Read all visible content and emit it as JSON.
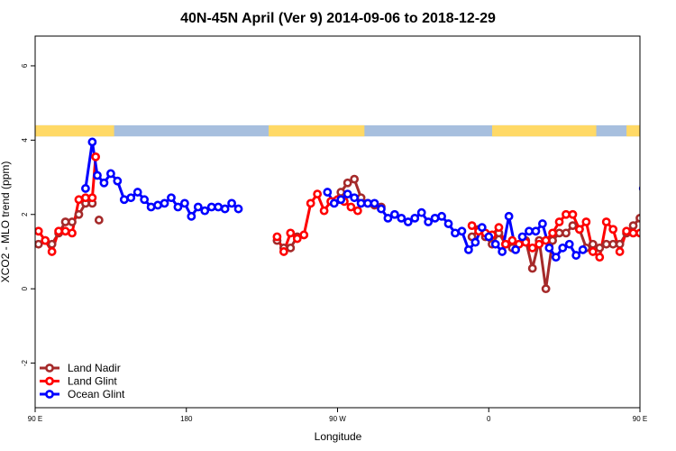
{
  "chart_data": {
    "type": "line",
    "title": "40N-45N April (Ver 9)   2014-09-06 to 2018-12-29",
    "xlabel": "Longitude",
    "ylabel": "XCO2 - MLO trend (ppm)",
    "xlim": [
      90,
      450
    ],
    "ylim": [
      -3.2,
      6.8
    ],
    "x_ticks": [
      {
        "value": 90,
        "label": "90 E"
      },
      {
        "value": 180,
        "label": "180"
      },
      {
        "value": 270,
        "label": "90 W"
      },
      {
        "value": 360,
        "label": "0"
      },
      {
        "value": 450,
        "label": "90 E"
      },
      {
        "value": 540,
        "label": "180"
      }
    ],
    "y_ticks": [
      -2,
      0,
      2,
      4,
      6
    ],
    "land_sea_strip": {
      "y_range": [
        4.1,
        4.4
      ],
      "land_color": "#ffd966",
      "ocean_color": "#a7bfde",
      "land_segments": [
        [
          90,
          137
        ],
        [
          229,
          286
        ],
        [
          362,
          424
        ],
        [
          442,
          460
        ],
        [
          470,
          471
        ]
      ]
    },
    "legend_position": "bottom-left",
    "series": [
      {
        "name": "Land Nadir",
        "color": "#a52a2a",
        "segments": [
          [
            [
              92,
              1.2
            ],
            [
              96,
              1.3
            ],
            [
              100,
              1.2
            ],
            [
              104,
              1.5
            ],
            [
              108,
              1.8
            ],
            [
              112,
              1.8
            ],
            [
              116,
              2.0
            ],
            [
              120,
              2.3
            ],
            [
              124,
              2.3
            ]
          ],
          [
            [
              128,
              1.85
            ]
          ],
          [
            [
              234,
              1.3
            ],
            [
              238,
              1.1
            ],
            [
              242,
              1.1
            ],
            [
              246,
              1.4
            ]
          ],
          [
            [
              268,
              2.35
            ],
            [
              272,
              2.6
            ],
            [
              276,
              2.85
            ],
            [
              280,
              2.95
            ],
            [
              284,
              2.45
            ],
            [
              288,
              2.3
            ],
            [
              292,
              2.25
            ],
            [
              296,
              2.2
            ]
          ],
          [
            [
              350,
              1.4
            ],
            [
              354,
              1.6
            ],
            [
              358,
              1.4
            ],
            [
              362,
              1.2
            ],
            [
              366,
              1.5
            ],
            [
              370,
              1.2
            ],
            [
              374,
              1.1
            ],
            [
              378,
              1.2
            ],
            [
              382,
              1.3
            ],
            [
              386,
              0.55
            ],
            [
              390,
              1.3
            ],
            [
              394,
              0.0
            ],
            [
              398,
              1.3
            ],
            [
              402,
              1.5
            ],
            [
              406,
              1.5
            ],
            [
              410,
              1.7
            ],
            [
              414,
              1.6
            ],
            [
              418,
              1.1
            ],
            [
              422,
              1.2
            ],
            [
              426,
              1.1
            ],
            [
              430,
              1.2
            ],
            [
              434,
              1.2
            ],
            [
              438,
              1.2
            ],
            [
              442,
              1.5
            ],
            [
              446,
              1.7
            ],
            [
              450,
              1.9
            ],
            [
              454,
              2.0
            ],
            [
              458,
              2.3
            ],
            [
              462,
              2.25
            ]
          ],
          [
            [
              466,
              1.85
            ]
          ]
        ]
      },
      {
        "name": "Land Glint",
        "color": "#ff0000",
        "segments": [
          [
            [
              92,
              1.55
            ],
            [
              96,
              1.3
            ],
            [
              100,
              1.0
            ],
            [
              104,
              1.55
            ],
            [
              108,
              1.55
            ],
            [
              112,
              1.5
            ],
            [
              116,
              2.4
            ],
            [
              120,
              2.45
            ],
            [
              124,
              2.45
            ],
            [
              126,
              3.55
            ]
          ],
          [
            [
              234,
              1.4
            ],
            [
              238,
              1.0
            ],
            [
              242,
              1.5
            ],
            [
              246,
              1.35
            ],
            [
              250,
              1.45
            ],
            [
              254,
              2.3
            ],
            [
              258,
              2.55
            ],
            [
              262,
              2.1
            ],
            [
              266,
              2.35
            ],
            [
              270,
              2.4
            ],
            [
              274,
              2.35
            ],
            [
              278,
              2.2
            ],
            [
              282,
              2.1
            ]
          ],
          [
            [
              350,
              1.7
            ],
            [
              354,
              1.55
            ],
            [
              358,
              1.5
            ],
            [
              362,
              1.45
            ],
            [
              366,
              1.65
            ],
            [
              370,
              1.2
            ],
            [
              374,
              1.3
            ],
            [
              378,
              1.2
            ],
            [
              382,
              1.25
            ],
            [
              386,
              1.1
            ],
            [
              390,
              1.2
            ],
            [
              394,
              1.3
            ],
            [
              398,
              1.5
            ],
            [
              402,
              1.8
            ],
            [
              406,
              2.0
            ],
            [
              410,
              2.0
            ],
            [
              414,
              1.6
            ],
            [
              418,
              1.8
            ],
            [
              422,
              1.0
            ],
            [
              426,
              0.85
            ],
            [
              430,
              1.8
            ],
            [
              434,
              1.6
            ],
            [
              438,
              1.0
            ],
            [
              442,
              1.55
            ],
            [
              446,
              1.5
            ],
            [
              450,
              1.5
            ],
            [
              454,
              2.4
            ],
            [
              458,
              2.45
            ],
            [
              462,
              2.45
            ],
            [
              464,
              3.55
            ]
          ]
        ]
      },
      {
        "name": "Ocean Glint",
        "color": "#0000ff",
        "segments": [
          [
            [
              120,
              2.7
            ],
            [
              124,
              3.95
            ],
            [
              127,
              3.05
            ],
            [
              131,
              2.85
            ],
            [
              135,
              3.1
            ],
            [
              139,
              2.9
            ],
            [
              143,
              2.4
            ],
            [
              147,
              2.45
            ],
            [
              151,
              2.6
            ],
            [
              155,
              2.4
            ],
            [
              159,
              2.2
            ],
            [
              163,
              2.25
            ],
            [
              167,
              2.3
            ],
            [
              171,
              2.45
            ],
            [
              175,
              2.2
            ],
            [
              179,
              2.3
            ],
            [
              183,
              1.95
            ],
            [
              187,
              2.2
            ],
            [
              191,
              2.1
            ],
            [
              195,
              2.2
            ],
            [
              199,
              2.2
            ],
            [
              203,
              2.15
            ],
            [
              207,
              2.3
            ],
            [
              211,
              2.15
            ]
          ],
          [
            [
              264,
              2.6
            ],
            [
              268,
              2.3
            ],
            [
              272,
              2.4
            ],
            [
              276,
              2.55
            ],
            [
              280,
              2.45
            ],
            [
              284,
              2.3
            ],
            [
              288,
              2.3
            ],
            [
              292,
              2.3
            ],
            [
              296,
              2.15
            ],
            [
              300,
              1.9
            ],
            [
              304,
              2.0
            ],
            [
              308,
              1.9
            ],
            [
              312,
              1.8
            ],
            [
              316,
              1.9
            ],
            [
              320,
              2.05
            ],
            [
              324,
              1.8
            ],
            [
              328,
              1.9
            ],
            [
              332,
              1.95
            ],
            [
              336,
              1.75
            ],
            [
              340,
              1.5
            ],
            [
              344,
              1.55
            ],
            [
              348,
              1.05
            ],
            [
              352,
              1.25
            ],
            [
              356,
              1.65
            ],
            [
              360,
              1.4
            ],
            [
              364,
              1.2
            ],
            [
              368,
              1.0
            ],
            [
              372,
              1.95
            ],
            [
              376,
              1.05
            ],
            [
              380,
              1.4
            ],
            [
              384,
              1.55
            ],
            [
              388,
              1.55
            ],
            [
              392,
              1.75
            ],
            [
              396,
              1.1
            ],
            [
              400,
              0.85
            ],
            [
              404,
              1.1
            ],
            [
              408,
              1.2
            ],
            [
              412,
              0.9
            ],
            [
              416,
              1.05
            ]
          ],
          [
            [
              452,
              2.7
            ],
            [
              455,
              3.95
            ],
            [
              459,
              3.05
            ],
            [
              463,
              2.85
            ],
            [
              467,
              3.1
            ],
            [
              471,
              2.9
            ],
            [
              475,
              2.4
            ],
            [
              479,
              2.45
            ],
            [
              483,
              2.6
            ],
            [
              487,
              2.4
            ],
            [
              491,
              2.2
            ],
            [
              495,
              2.25
            ]
          ]
        ]
      }
    ]
  }
}
